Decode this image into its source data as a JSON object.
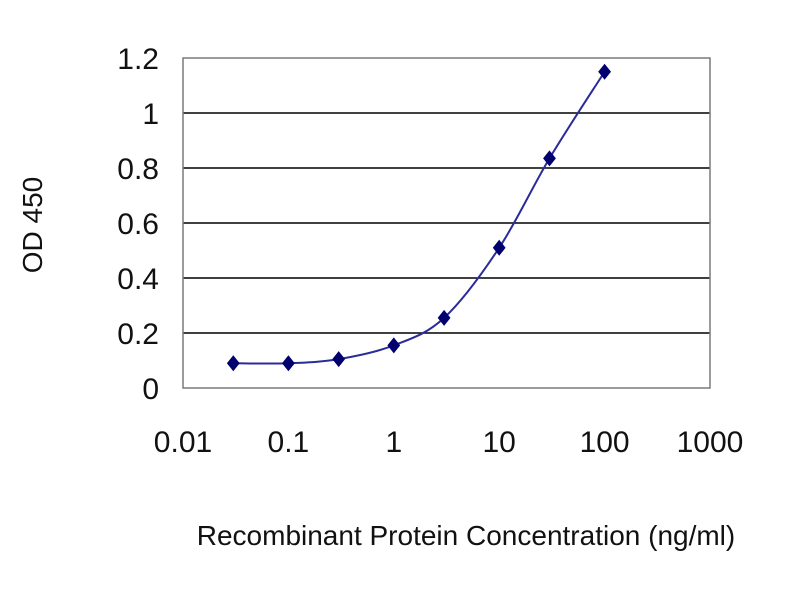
{
  "chart_data": {
    "type": "line",
    "title": "",
    "xlabel": "Recombinant Protein Concentration (ng/ml)",
    "ylabel": "OD 450",
    "x_scale": "log",
    "xlim": [
      0.01,
      1000
    ],
    "ylim": [
      0,
      1.2
    ],
    "x_ticks": [
      "0.01",
      "0.1",
      "1",
      "10",
      "100",
      "1000"
    ],
    "y_ticks": [
      "0",
      "0.2",
      "0.4",
      "0.6",
      "0.8",
      "1",
      "1.2"
    ],
    "grid": "horizontal",
    "legend": "none",
    "series": [
      {
        "x": [
          0.03,
          0.1,
          0.3,
          1,
          3,
          10,
          30,
          100
        ],
        "y": [
          0.09,
          0.09,
          0.105,
          0.155,
          0.255,
          0.51,
          0.835,
          1.15
        ]
      }
    ],
    "colors": {
      "line": "#2b2b9a",
      "marker": "#00006e",
      "grid": "#000000",
      "frame": "#7a7a7a"
    }
  }
}
